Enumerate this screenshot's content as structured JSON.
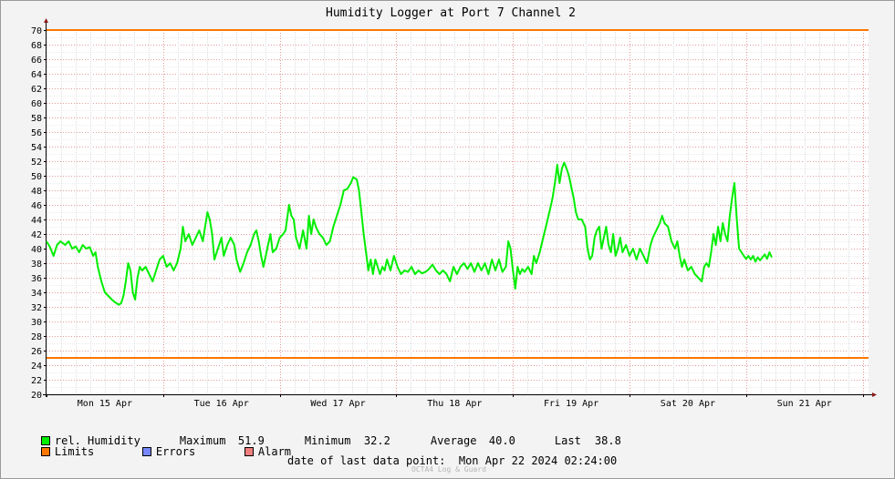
{
  "chart_data": {
    "type": "line",
    "title": "Humidity Logger at Port 7 Channel 2",
    "ylim": [
      20,
      70
    ],
    "yticks": [
      20,
      22,
      24,
      26,
      28,
      30,
      32,
      34,
      36,
      38,
      40,
      42,
      44,
      46,
      48,
      50,
      52,
      54,
      56,
      58,
      60,
      62,
      64,
      66,
      68,
      70
    ],
    "xlim": [
      0,
      7.05
    ],
    "xticks": [
      {
        "label": "Mon 15 Apr",
        "x": 0.5
      },
      {
        "label": "Tue 16 Apr",
        "x": 1.5
      },
      {
        "label": "Wed 17 Apr",
        "x": 2.5
      },
      {
        "label": "Thu 18 Apr",
        "x": 3.5
      },
      {
        "label": "Fri 19 Apr",
        "x": 4.5
      },
      {
        "label": "Sat 20 Apr",
        "x": 5.5
      },
      {
        "label": "Sun 21 Apr",
        "x": 6.5
      }
    ],
    "grid": true,
    "limits": [
      25,
      70
    ],
    "series": [
      {
        "name": "rel. Humidity",
        "color": "#00ee00",
        "points": [
          [
            0.0,
            41.0
          ],
          [
            0.03,
            40.2
          ],
          [
            0.06,
            39.0
          ],
          [
            0.09,
            40.5
          ],
          [
            0.12,
            41.0
          ],
          [
            0.16,
            40.5
          ],
          [
            0.19,
            41.0
          ],
          [
            0.22,
            40.0
          ],
          [
            0.25,
            40.3
          ],
          [
            0.28,
            39.5
          ],
          [
            0.31,
            40.5
          ],
          [
            0.34,
            40.0
          ],
          [
            0.37,
            40.2
          ],
          [
            0.4,
            39.0
          ],
          [
            0.42,
            39.5
          ],
          [
            0.44,
            37.5
          ],
          [
            0.47,
            35.5
          ],
          [
            0.5,
            34.0
          ],
          [
            0.53,
            33.5
          ],
          [
            0.56,
            33.0
          ],
          [
            0.59,
            32.6
          ],
          [
            0.62,
            32.3
          ],
          [
            0.64,
            32.5
          ],
          [
            0.66,
            33.5
          ],
          [
            0.68,
            35.5
          ],
          [
            0.7,
            38.0
          ],
          [
            0.72,
            37.0
          ],
          [
            0.74,
            34.0
          ],
          [
            0.76,
            33.0
          ],
          [
            0.78,
            36.0
          ],
          [
            0.8,
            37.5
          ],
          [
            0.82,
            37.0
          ],
          [
            0.85,
            37.5
          ],
          [
            0.88,
            36.5
          ],
          [
            0.91,
            35.5
          ],
          [
            0.94,
            37.0
          ],
          [
            0.97,
            38.5
          ],
          [
            1.0,
            39.0
          ],
          [
            1.03,
            37.5
          ],
          [
            1.06,
            38.0
          ],
          [
            1.09,
            37.0
          ],
          [
            1.12,
            38.0
          ],
          [
            1.15,
            40.0
          ],
          [
            1.17,
            43.0
          ],
          [
            1.19,
            41.0
          ],
          [
            1.22,
            42.0
          ],
          [
            1.25,
            40.5
          ],
          [
            1.28,
            41.5
          ],
          [
            1.31,
            42.5
          ],
          [
            1.34,
            41.0
          ],
          [
            1.36,
            43.0
          ],
          [
            1.38,
            45.0
          ],
          [
            1.4,
            44.0
          ],
          [
            1.42,
            42.0
          ],
          [
            1.44,
            38.5
          ],
          [
            1.47,
            40.0
          ],
          [
            1.5,
            41.5
          ],
          [
            1.52,
            39.0
          ],
          [
            1.55,
            40.5
          ],
          [
            1.58,
            41.5
          ],
          [
            1.61,
            40.5
          ],
          [
            1.63,
            38.5
          ],
          [
            1.66,
            36.8
          ],
          [
            1.69,
            38.0
          ],
          [
            1.72,
            39.5
          ],
          [
            1.75,
            40.5
          ],
          [
            1.78,
            42.0
          ],
          [
            1.8,
            42.5
          ],
          [
            1.82,
            41.0
          ],
          [
            1.84,
            39.0
          ],
          [
            1.86,
            37.5
          ],
          [
            1.88,
            39.0
          ],
          [
            1.9,
            40.5
          ],
          [
            1.92,
            42.0
          ],
          [
            1.94,
            39.5
          ],
          [
            1.97,
            40.0
          ],
          [
            2.0,
            41.5
          ],
          [
            2.03,
            42.0
          ],
          [
            2.05,
            42.5
          ],
          [
            2.08,
            46.0
          ],
          [
            2.1,
            44.5
          ],
          [
            2.12,
            44.0
          ],
          [
            2.14,
            41.5
          ],
          [
            2.17,
            40.0
          ],
          [
            2.2,
            42.5
          ],
          [
            2.23,
            40.0
          ],
          [
            2.25,
            44.5
          ],
          [
            2.27,
            42.0
          ],
          [
            2.29,
            44.0
          ],
          [
            2.31,
            43.0
          ],
          [
            2.34,
            42.0
          ],
          [
            2.37,
            41.5
          ],
          [
            2.4,
            40.5
          ],
          [
            2.43,
            41.0
          ],
          [
            2.46,
            43.0
          ],
          [
            2.49,
            44.5
          ],
          [
            2.52,
            46.0
          ],
          [
            2.55,
            48.0
          ],
          [
            2.58,
            48.2
          ],
          [
            2.61,
            49.0
          ],
          [
            2.63,
            49.8
          ],
          [
            2.66,
            49.5
          ],
          [
            2.68,
            48.0
          ],
          [
            2.7,
            45.0
          ],
          [
            2.72,
            42.0
          ],
          [
            2.74,
            39.5
          ],
          [
            2.76,
            37.0
          ],
          [
            2.78,
            38.5
          ],
          [
            2.8,
            36.5
          ],
          [
            2.82,
            38.5
          ],
          [
            2.84,
            37.5
          ],
          [
            2.86,
            36.5
          ],
          [
            2.88,
            37.5
          ],
          [
            2.9,
            37.0
          ],
          [
            2.92,
            38.5
          ],
          [
            2.95,
            37.0
          ],
          [
            2.98,
            39.0
          ],
          [
            3.01,
            37.5
          ],
          [
            3.04,
            36.5
          ],
          [
            3.07,
            37.0
          ],
          [
            3.1,
            36.8
          ],
          [
            3.13,
            37.5
          ],
          [
            3.16,
            36.5
          ],
          [
            3.19,
            37.0
          ],
          [
            3.22,
            36.6
          ],
          [
            3.25,
            36.8
          ],
          [
            3.28,
            37.2
          ],
          [
            3.31,
            37.8
          ],
          [
            3.34,
            37.0
          ],
          [
            3.37,
            36.5
          ],
          [
            3.4,
            37.0
          ],
          [
            3.43,
            36.5
          ],
          [
            3.46,
            35.5
          ],
          [
            3.49,
            37.5
          ],
          [
            3.52,
            36.5
          ],
          [
            3.55,
            37.5
          ],
          [
            3.58,
            38.0
          ],
          [
            3.61,
            37.2
          ],
          [
            3.64,
            38.0
          ],
          [
            3.67,
            36.8
          ],
          [
            3.7,
            38.0
          ],
          [
            3.73,
            37.0
          ],
          [
            3.76,
            38.0
          ],
          [
            3.79,
            36.5
          ],
          [
            3.82,
            38.5
          ],
          [
            3.85,
            37.0
          ],
          [
            3.88,
            38.5
          ],
          [
            3.91,
            36.8
          ],
          [
            3.94,
            37.5
          ],
          [
            3.96,
            41.0
          ],
          [
            3.98,
            40.0
          ],
          [
            4.0,
            37.0
          ],
          [
            4.02,
            34.5
          ],
          [
            4.04,
            37.5
          ],
          [
            4.06,
            36.5
          ],
          [
            4.08,
            37.2
          ],
          [
            4.1,
            36.8
          ],
          [
            4.13,
            37.5
          ],
          [
            4.16,
            36.5
          ],
          [
            4.18,
            39.0
          ],
          [
            4.2,
            38.0
          ],
          [
            4.23,
            39.5
          ],
          [
            4.26,
            41.5
          ],
          [
            4.29,
            43.5
          ],
          [
            4.32,
            45.5
          ],
          [
            4.34,
            47.0
          ],
          [
            4.36,
            49.0
          ],
          [
            4.38,
            51.5
          ],
          [
            4.4,
            49.0
          ],
          [
            4.42,
            51.0
          ],
          [
            4.44,
            51.8
          ],
          [
            4.46,
            51.0
          ],
          [
            4.48,
            50.0
          ],
          [
            4.5,
            48.5
          ],
          [
            4.52,
            47.0
          ],
          [
            4.54,
            45.0
          ],
          [
            4.56,
            44.0
          ],
          [
            4.59,
            44.0
          ],
          [
            4.62,
            43.0
          ],
          [
            4.64,
            40.0
          ],
          [
            4.66,
            38.5
          ],
          [
            4.68,
            39.0
          ],
          [
            4.7,
            41.5
          ],
          [
            4.72,
            42.5
          ],
          [
            4.74,
            43.0
          ],
          [
            4.76,
            40.0
          ],
          [
            4.78,
            41.5
          ],
          [
            4.8,
            43.0
          ],
          [
            4.82,
            40.5
          ],
          [
            4.84,
            39.5
          ],
          [
            4.86,
            42.0
          ],
          [
            4.88,
            39.0
          ],
          [
            4.9,
            40.0
          ],
          [
            4.92,
            41.5
          ],
          [
            4.94,
            39.5
          ],
          [
            4.97,
            40.5
          ],
          [
            5.0,
            39.0
          ],
          [
            5.03,
            40.0
          ],
          [
            5.06,
            38.5
          ],
          [
            5.09,
            40.0
          ],
          [
            5.12,
            39.0
          ],
          [
            5.15,
            38.0
          ],
          [
            5.18,
            40.5
          ],
          [
            5.2,
            41.5
          ],
          [
            5.23,
            42.5
          ],
          [
            5.26,
            43.5
          ],
          [
            5.28,
            44.5
          ],
          [
            5.3,
            43.5
          ],
          [
            5.33,
            43.0
          ],
          [
            5.36,
            41.0
          ],
          [
            5.39,
            40.0
          ],
          [
            5.41,
            41.0
          ],
          [
            5.43,
            39.0
          ],
          [
            5.45,
            37.5
          ],
          [
            5.47,
            38.5
          ],
          [
            5.5,
            37.0
          ],
          [
            5.53,
            37.5
          ],
          [
            5.56,
            36.5
          ],
          [
            5.59,
            36.0
          ],
          [
            5.62,
            35.5
          ],
          [
            5.64,
            37.5
          ],
          [
            5.66,
            38.0
          ],
          [
            5.68,
            37.5
          ],
          [
            5.7,
            39.5
          ],
          [
            5.72,
            42.0
          ],
          [
            5.74,
            40.5
          ],
          [
            5.76,
            43.0
          ],
          [
            5.78,
            41.0
          ],
          [
            5.8,
            43.5
          ],
          [
            5.82,
            42.0
          ],
          [
            5.84,
            41.0
          ],
          [
            5.86,
            44.5
          ],
          [
            5.88,
            47.0
          ],
          [
            5.9,
            49.0
          ],
          [
            5.92,
            44.0
          ],
          [
            5.94,
            40.0
          ],
          [
            5.96,
            39.5
          ],
          [
            5.98,
            39.0
          ],
          [
            6.0,
            38.6
          ],
          [
            6.02,
            39.0
          ],
          [
            6.04,
            38.5
          ],
          [
            6.06,
            39.0
          ],
          [
            6.08,
            38.2
          ],
          [
            6.1,
            38.8
          ],
          [
            6.12,
            38.4
          ],
          [
            6.14,
            38.8
          ],
          [
            6.16,
            39.2
          ],
          [
            6.18,
            38.6
          ],
          [
            6.2,
            39.5
          ],
          [
            6.22,
            38.8
          ]
        ]
      }
    ]
  },
  "legend": {
    "series_label": "rel. Humidity",
    "maximum_label": "Maximum",
    "maximum_value": "51.9",
    "minimum_label": "Minimum",
    "minimum_value": "32.2",
    "average_label": "Average",
    "average_value": "40.0",
    "last_label": "Last",
    "last_value": "38.8",
    "limits_label": "Limits",
    "errors_label": "Errors",
    "alarm_label": "Alarm"
  },
  "colors": {
    "series": "#00ee00",
    "limits": "#ff7700",
    "errors": "#7788ff",
    "alarm": "#f27f7f"
  },
  "footer": {
    "last_point_label": "date of last data point:",
    "last_point_value": "Mon Apr 22 2024 02:24:00",
    "watermark": "OCTA4 Log & Guard"
  }
}
